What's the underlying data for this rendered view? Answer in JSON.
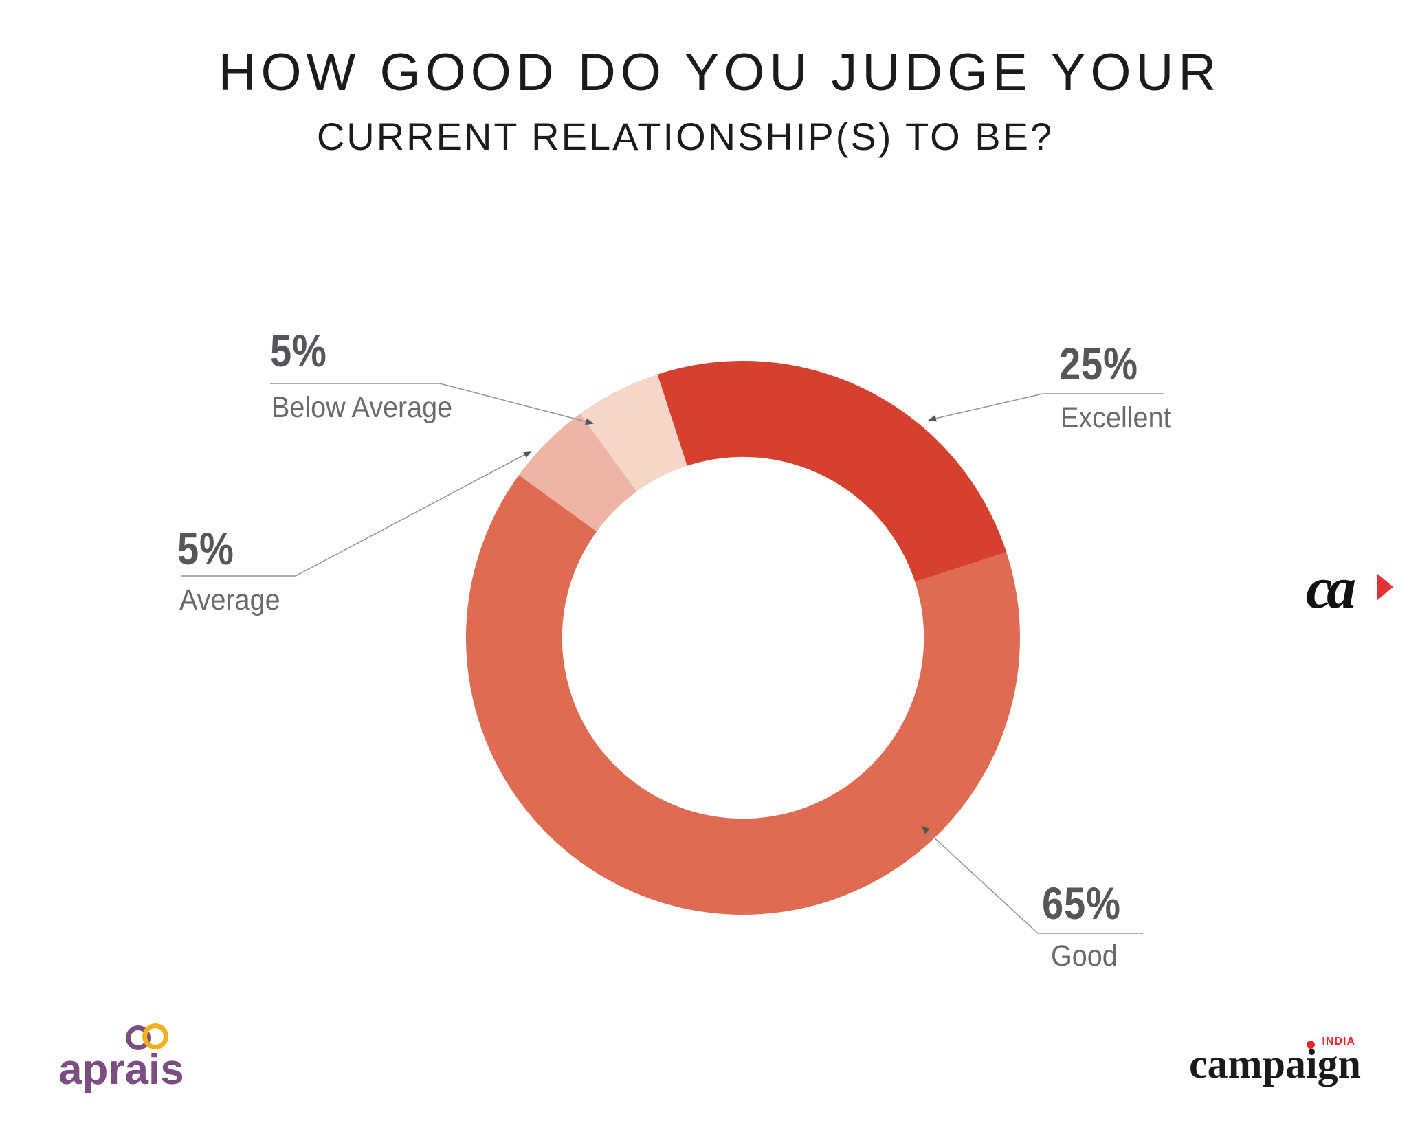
{
  "title": {
    "line1": "HOW GOOD DO YOU JUDGE YOUR",
    "line2": "CURRENT RELATIONSHIP(S) TO BE?"
  },
  "chart_data": {
    "type": "pie",
    "subtype": "donut",
    "title": "HOW GOOD DO YOU JUDGE YOUR CURRENT RELATIONSHIP(S) TO BE?",
    "categories": [
      "Excellent",
      "Good",
      "Average",
      "Below Average"
    ],
    "values": [
      25,
      65,
      5,
      5
    ],
    "unit": "%",
    "colors": [
      "#d6402f",
      "#df6b52",
      "#eeb4a4",
      "#f5d6c8"
    ],
    "start_angle_deg": -18,
    "direction": "clockwise",
    "inner_radius_ratio": 0.653,
    "legend_position": "callouts",
    "grid": false
  },
  "callouts": {
    "excellent": {
      "pct": "25%",
      "label": "Excellent"
    },
    "good": {
      "pct": "65%",
      "label": "Good"
    },
    "average": {
      "pct": "5%",
      "label": "Average"
    },
    "below_average": {
      "pct": "5%",
      "label": "Below Average"
    }
  },
  "colors": {
    "pct_text": "#55565a",
    "category_text": "#696a6c",
    "leader_line": "#919295",
    "arrowhead": "#55565a",
    "title_text": "#1b1b1b",
    "background": "#ffffff"
  },
  "logos": {
    "aprais": {
      "text": "aprais",
      "purple": "#7c4d80",
      "gold": "#f2b217"
    },
    "campaign": {
      "part1": "campa",
      "part2": "i",
      "part3": "gn",
      "country": "INDIA",
      "black": "#1a1a1a",
      "red": "#e8252c"
    },
    "ca": {
      "text": "ca",
      "triangle_red": "#e23437"
    }
  }
}
